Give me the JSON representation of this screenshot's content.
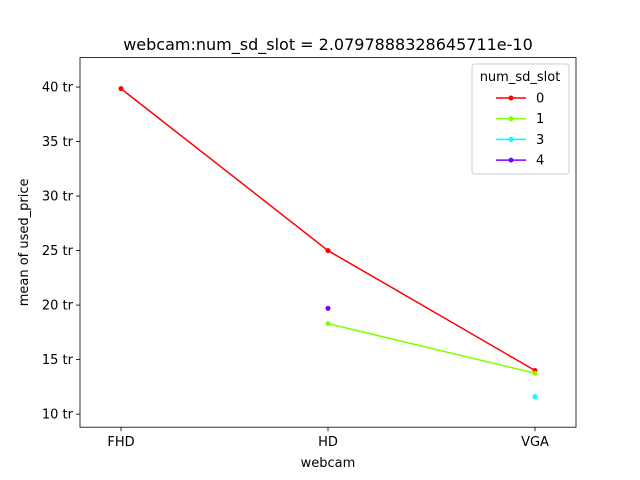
{
  "chart_data": {
    "type": "line",
    "title": "webcam:num_sd_slot = 2.0797888328645711e-10",
    "xlabel": "webcam",
    "ylabel": "mean of used_price",
    "categories": [
      "FHD",
      "HD",
      "VGA"
    ],
    "ylim": [
      8.8,
      42.7
    ],
    "yticks": [
      10,
      15,
      20,
      25,
      30,
      35,
      40
    ],
    "ytick_labels": [
      "10 tr",
      "15 tr",
      "20 tr",
      "25 tr",
      "30 tr",
      "35 tr",
      "40 tr"
    ],
    "grid": false,
    "legend": {
      "title": "num_sd_slot",
      "placement": "top-right"
    },
    "series": [
      {
        "name": "0",
        "color": "#ff0000",
        "values": [
          39.85,
          25.0,
          14.0
        ]
      },
      {
        "name": "1",
        "color": "#80ff00",
        "values": [
          null,
          18.3,
          13.75
        ]
      },
      {
        "name": "3",
        "color": "#00ffff",
        "values": [
          null,
          null,
          11.6
        ]
      },
      {
        "name": "4",
        "color": "#8000ff",
        "values": [
          null,
          19.7,
          null
        ]
      }
    ]
  }
}
